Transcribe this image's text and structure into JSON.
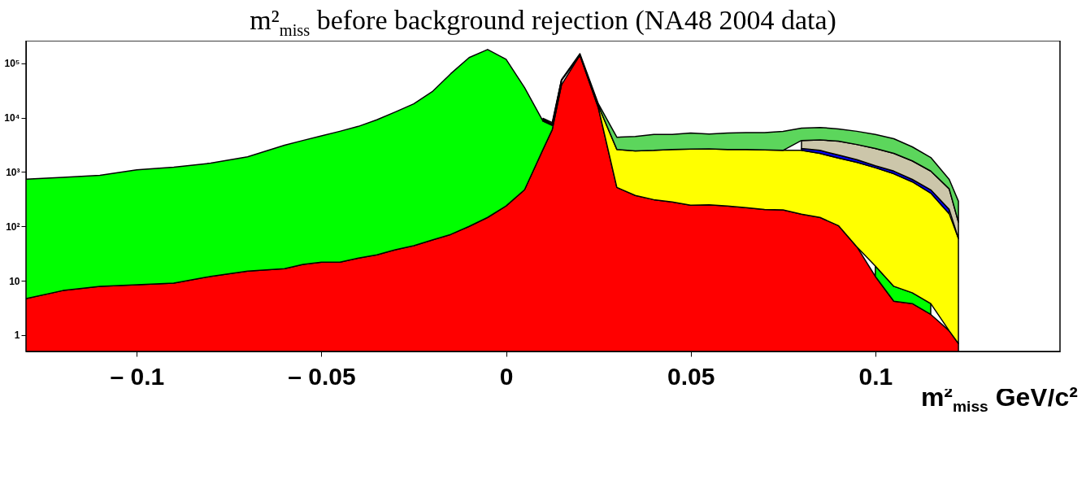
{
  "chart_data": {
    "type": "area",
    "title": "m²$_{miss}$ before background rejection (NA48 2004 data)",
    "xlabel": "m²$_{miss}$ GeV/c²",
    "x": [
      -0.13,
      -0.12,
      -0.11,
      -0.1,
      -0.09,
      -0.08,
      -0.07,
      -0.06,
      -0.055,
      -0.05,
      -0.045,
      -0.04,
      -0.035,
      -0.03,
      -0.025,
      -0.02,
      -0.015,
      -0.01,
      -0.005,
      0,
      0.005,
      0.01,
      0.0125,
      0.015,
      0.02,
      0.025,
      0.03,
      0.035,
      0.04,
      0.045,
      0.05,
      0.055,
      0.06,
      0.065,
      0.07,
      0.075,
      0.08,
      0.085,
      0.09,
      0.095,
      0.1,
      0.105,
      0.11,
      0.115,
      0.12,
      0.1225
    ],
    "stacked": true,
    "log": true,
    "grid": false,
    "line_style": "solid",
    "series": [
      {
        "color": "#ff0000",
        "values": [
          4.7,
          6.6,
          7.9,
          8.4,
          9,
          12,
          15,
          16.7,
          20,
          22,
          22,
          26,
          30,
          37,
          44,
          56,
          71,
          100,
          146,
          237,
          470,
          2600,
          6000,
          40000,
          140000,
          15000,
          520,
          370,
          310,
          280,
          245,
          250,
          237,
          220,
          205,
          200,
          168,
          146,
          103,
          42,
          12,
          4.2,
          3.8,
          2.4,
          1.2,
          0.7
        ]
      },
      {
        "color": "#00ff00",
        "values": [
          730,
          790,
          860,
          1090,
          1220,
          1440,
          1880,
          3080,
          3780,
          4580,
          5580,
          6870,
          9070,
          12660,
          17860,
          29940,
          63930,
          126900,
          178850,
          117760,
          35330,
          6000,
          1200,
          8000,
          null,
          null,
          null,
          null,
          null,
          null,
          null,
          null,
          null,
          null,
          null,
          null,
          null,
          null,
          null,
          null,
          6.6,
          3.7,
          2.2,
          1.4,
          null,
          null
        ]
      },
      {
        "color": "#ffff00",
        "values": [
          null,
          null,
          null,
          null,
          null,
          null,
          null,
          null,
          null,
          null,
          null,
          null,
          null,
          null,
          null,
          null,
          null,
          null,
          null,
          null,
          null,
          500,
          400,
          1000,
          4000,
          1500,
          2080,
          2080,
          2190,
          2320,
          2400,
          2400,
          2360,
          2380,
          2350,
          2300,
          2330,
          2050,
          1700,
          1460,
          1180,
          920,
          654,
          406,
          169,
          59
        ]
      },
      {
        "color": "#0000ff",
        "values": [
          null,
          null,
          null,
          null,
          null,
          null,
          null,
          null,
          null,
          null,
          null,
          null,
          null,
          null,
          null,
          null,
          null,
          null,
          null,
          null,
          null,
          null,
          null,
          null,
          null,
          null,
          null,
          null,
          null,
          null,
          null,
          null,
          null,
          null,
          null,
          null,
          200,
          300,
          250,
          180,
          100,
          110,
          70,
          60,
          35,
          null
        ]
      },
      {
        "color": "#ccc6aa",
        "values": [
          null,
          null,
          null,
          null,
          null,
          null,
          null,
          null,
          null,
          null,
          null,
          null,
          null,
          null,
          null,
          null,
          null,
          null,
          null,
          null,
          null,
          null,
          null,
          null,
          null,
          null,
          null,
          null,
          null,
          null,
          null,
          null,
          null,
          null,
          null,
          null,
          1100,
          1400,
          1650,
          1520,
          1400,
          1160,
          870,
          570,
          285,
          60
        ]
      },
      {
        "color": "#5cd65c",
        "values": [
          null,
          null,
          null,
          null,
          null,
          null,
          null,
          null,
          null,
          null,
          null,
          null,
          null,
          null,
          null,
          null,
          null,
          null,
          null,
          null,
          null,
          600,
          500,
          1000,
          6000,
          1400,
          1750,
          2050,
          2400,
          2300,
          2550,
          2350,
          2600,
          2700,
          2750,
          3100,
          2600,
          2700,
          2500,
          2400,
          2200,
          1900,
          1300,
          810,
          240,
          170
        ]
      }
    ],
    "xlim": [
      -0.13,
      0.15
    ],
    "xticks": [
      {
        "value": -0.1,
        "label": "– 0.1"
      },
      {
        "value": -0.05,
        "label": "– 0.05"
      },
      0,
      0.05,
      0.1
    ],
    "ylim": [
      0.5,
      260000
    ],
    "yticks": [
      1,
      10,
      {
        "value": 100,
        "label": "10²"
      },
      {
        "value": 1000,
        "label": "10³"
      },
      {
        "value": 10000,
        "label": "10⁴"
      },
      {
        "value": 100000,
        "label": "10⁵"
      }
    ]
  }
}
